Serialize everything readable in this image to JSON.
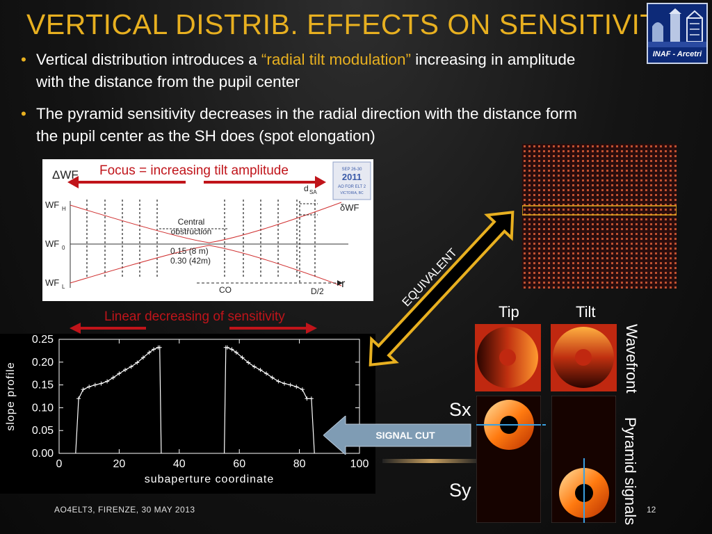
{
  "title": "Vertical distrib. effects on sensitivity",
  "bullets": [
    {
      "pre": "Vertical distribution introduces a ",
      "highlight": "“radial tilt modulation”",
      "post": " increasing in amplitude with the distance from the pupil center"
    },
    {
      "pre": "The pyramid sensitivity decreases in the radial direction with the distance form the pupil center as the SH does (spot elongation)",
      "highlight": "",
      "post": ""
    }
  ],
  "logo": {
    "text": "INAF - Arcetri"
  },
  "diagram": {
    "focus_label": "Focus = increasing tilt amplitude",
    "dwf": "ΔWF",
    "wfh": "WF",
    "wfh_sub": "H",
    "wf0": "WF",
    "wf0_sub": "0",
    "wfl": "WF",
    "wfl_sub": "L",
    "central": "Central",
    "obstruction": "obstruction",
    "val1": "0.15 (8 m)",
    "val2": "0.30 (42m)",
    "co": "CO",
    "d2": "D/2",
    "r": "r",
    "dsa": "d",
    "dsa_sub": "SA",
    "dwf_right": "δWF",
    "conf_badge": {
      "line1": "SEP 26-30",
      "line2": "2011",
      "line3": "AO FOR ELT 2",
      "line4": "VICTORIA, BC"
    }
  },
  "linear_label": "Linear decreasing of sensitivity",
  "equivalent_label": "EQUIVALENT",
  "signal_cut_label": "SIGNAL CUT",
  "panels": {
    "tip": "Tip",
    "tilt": "Tilt",
    "wavefront": "Wavefront",
    "pyramid": "Pyramid signals",
    "sx": "Sx",
    "sy": "Sy"
  },
  "chart_data": {
    "type": "line",
    "xlabel": "subaperture coordinate",
    "ylabel": "slope profile",
    "xlim": [
      0,
      100
    ],
    "ylim": [
      0,
      0.25
    ],
    "xticks": [
      "0",
      "20",
      "40",
      "60",
      "80",
      "100"
    ],
    "yticks": [
      "0.00",
      "0.05",
      "0.10",
      "0.15",
      "0.20",
      "0.25"
    ],
    "series": [
      {
        "segment": "left",
        "x": [
          5.5,
          6.5,
          8,
          10,
          12,
          14,
          16,
          18,
          20,
          22,
          24,
          26,
          28,
          30,
          31.5,
          33,
          33.5,
          34
        ],
        "y": [
          0,
          0.12,
          0.14,
          0.146,
          0.15,
          0.153,
          0.158,
          0.166,
          0.175,
          0.183,
          0.19,
          0.199,
          0.21,
          0.221,
          0.228,
          0.232,
          0.232,
          0
        ]
      },
      {
        "segment": "right",
        "x": [
          55,
          55.5,
          56,
          57.5,
          59,
          61,
          63,
          65,
          67,
          69,
          71,
          73,
          75,
          77,
          79,
          81,
          82.5,
          84,
          85
        ],
        "y": [
          0,
          0.232,
          0.232,
          0.228,
          0.221,
          0.21,
          0.199,
          0.19,
          0.183,
          0.175,
          0.166,
          0.158,
          0.153,
          0.15,
          0.146,
          0.14,
          0.12,
          0.12,
          0
        ]
      }
    ]
  },
  "footer": "AO4ELT3, FIRENZE, 30 MAY 2013",
  "page_number": "12",
  "colors": {
    "accent": "#e8b020",
    "arrow_red": "#c0141a",
    "steel": "#7f9cb4"
  }
}
